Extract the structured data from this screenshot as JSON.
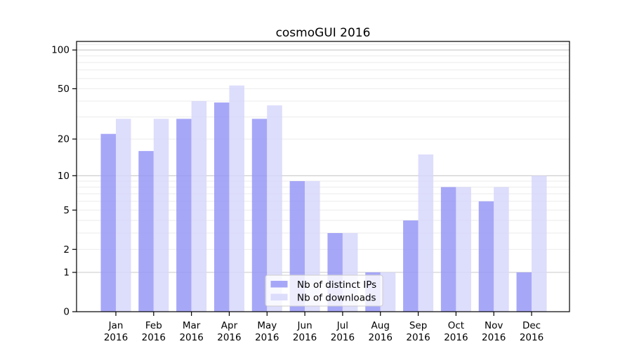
{
  "title": "cosmoGUI 2016",
  "colors": {
    "bar_ips": "#9898f7",
    "bar_downloads": "#d7d7fb",
    "bar_opacity": "0.85",
    "grid_major": "#c8c8c8",
    "grid_minor": "#ebebeb",
    "axis": "#000000",
    "legend_border": "#cccccc",
    "legend_bg": "rgba(255,255,255,0.8)"
  },
  "legend": {
    "items": [
      {
        "label": "Nb of distinct IPs",
        "color_key": "bar_ips"
      },
      {
        "label": "Nb of downloads",
        "color_key": "bar_downloads"
      }
    ]
  },
  "chart_data": {
    "type": "bar",
    "title": "cosmoGUI 2016",
    "categories": [
      "Jan 2016",
      "Feb 2016",
      "Mar 2016",
      "Apr 2016",
      "May 2016",
      "Jun 2016",
      "Jul 2016",
      "Aug 2016",
      "Sep 2016",
      "Oct 2016",
      "Nov 2016",
      "Dec 2016"
    ],
    "series": [
      {
        "name": "Nb of distinct IPs",
        "values": [
          22,
          16,
          29,
          39,
          29,
          9,
          3,
          1,
          4,
          8,
          6,
          1
        ]
      },
      {
        "name": "Nb of downloads",
        "values": [
          29,
          29,
          40,
          53,
          37,
          9,
          3,
          1,
          15,
          8,
          8,
          10
        ]
      }
    ],
    "y_scale": "log1p",
    "y_ticks": [
      0,
      1,
      2,
      5,
      10,
      20,
      50,
      100
    ],
    "y_grid_major": [
      1,
      10,
      100
    ],
    "y_grid_minor": [
      2,
      3,
      4,
      5,
      6,
      7,
      8,
      9,
      20,
      30,
      40,
      50,
      60,
      70,
      80,
      90,
      110
    ],
    "ylim": [
      0,
      117
    ],
    "xlabel": "",
    "ylabel": "",
    "grid": "horizontal",
    "legend_position": "lower-center"
  }
}
